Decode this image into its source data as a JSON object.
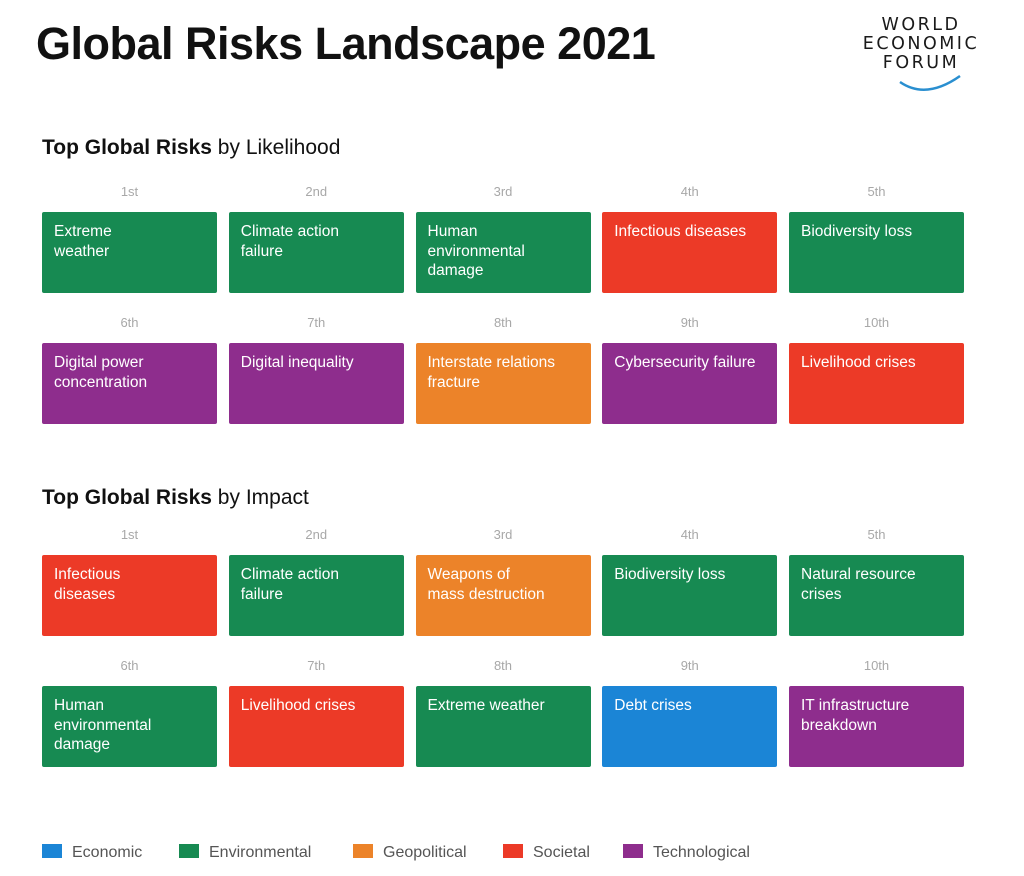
{
  "title": "Global Risks Landscape 2021",
  "logo": {
    "line1": "WORLD",
    "line2": "ECONOMIC",
    "line3": "FORUM"
  },
  "colors": {
    "Economic": "#1b85d6",
    "Environmental": "#178a52",
    "Geopolitical": "#ec8329",
    "Societal": "#ec3a27",
    "Technological": "#8e2d8d"
  },
  "sections": [
    {
      "title_bold": "Top Global Risks",
      "title_rest": " by Likelihood",
      "items": [
        {
          "rank": "1st",
          "label": "Extreme\nweather",
          "category": "Environmental"
        },
        {
          "rank": "2nd",
          "label": "Climate action\nfailure",
          "category": "Environmental"
        },
        {
          "rank": "3rd",
          "label": "Human\nenvironmental\ndamage",
          "category": "Environmental"
        },
        {
          "rank": "4th",
          "label": "Infectious diseases",
          "category": "Societal"
        },
        {
          "rank": "5th",
          "label": "Biodiversity loss",
          "category": "Environmental"
        },
        {
          "rank": "6th",
          "label": "Digital power\nconcentration",
          "category": "Technological"
        },
        {
          "rank": "7th",
          "label": "Digital inequality",
          "category": "Technological"
        },
        {
          "rank": "8th",
          "label": "Interstate relations\nfracture",
          "category": "Geopolitical"
        },
        {
          "rank": "9th",
          "label": "Cybersecurity failure",
          "category": "Technological"
        },
        {
          "rank": "10th",
          "label": "Livelihood crises",
          "category": "Societal"
        }
      ]
    },
    {
      "title_bold": "Top Global Risks",
      "title_rest": " by Impact",
      "items": [
        {
          "rank": "1st",
          "label": "Infectious\ndiseases",
          "category": "Societal"
        },
        {
          "rank": "2nd",
          "label": "Climate action\nfailure",
          "category": "Environmental"
        },
        {
          "rank": "3rd",
          "label": "Weapons of\nmass destruction",
          "category": "Geopolitical"
        },
        {
          "rank": "4th",
          "label": "Biodiversity loss",
          "category": "Environmental"
        },
        {
          "rank": "5th",
          "label": "Natural resource\ncrises",
          "category": "Environmental"
        },
        {
          "rank": "6th",
          "label": "Human\nenvironmental\ndamage",
          "category": "Environmental"
        },
        {
          "rank": "7th",
          "label": "Livelihood crises",
          "category": "Societal"
        },
        {
          "rank": "8th",
          "label": "Extreme weather",
          "category": "Environmental"
        },
        {
          "rank": "9th",
          "label": "Debt crises",
          "category": "Economic"
        },
        {
          "rank": "10th",
          "label": "IT infrastructure\nbreakdown",
          "category": "Technological"
        }
      ]
    }
  ],
  "legend": [
    "Economic",
    "Environmental",
    "Geopolitical",
    "Societal",
    "Technological"
  ]
}
